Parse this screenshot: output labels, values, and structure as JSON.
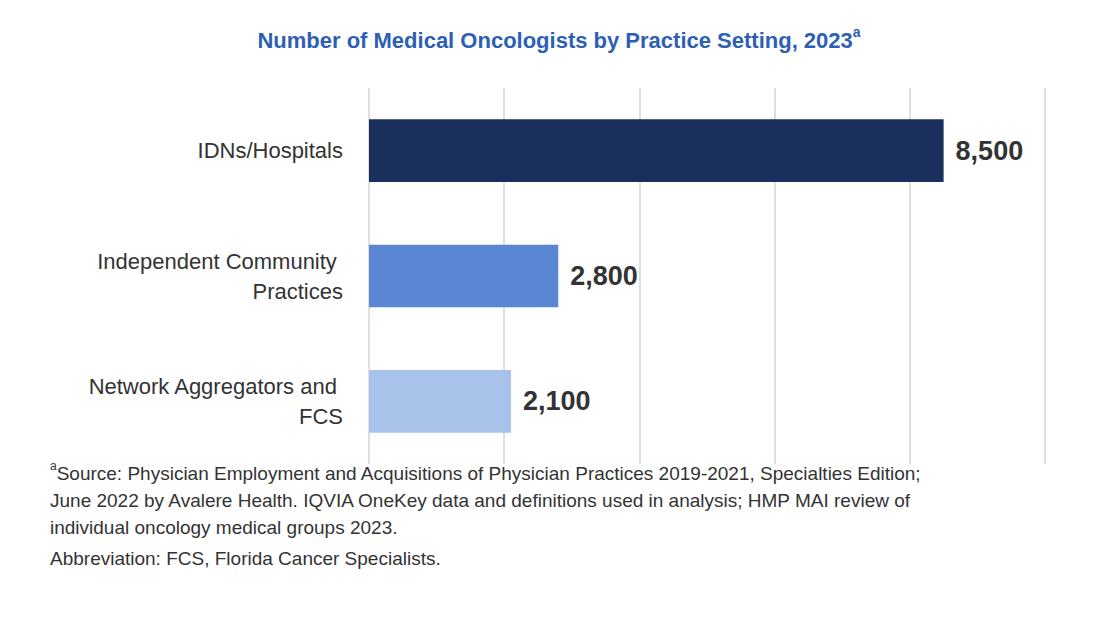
{
  "chart_data": {
    "type": "bar",
    "orientation": "horizontal",
    "title": "Number of Medical Oncologists by Practice Setting, 2023",
    "title_superscript": "a",
    "categories": [
      "IDNs/Hospitals",
      "Independent Community Practices",
      "Network Aggregators and FCS"
    ],
    "values": [
      8500,
      2800,
      2100
    ],
    "value_labels": [
      "8,500",
      "2,800",
      "2,100"
    ],
    "colors": [
      "#1b2f5c",
      "#5b86d3",
      "#a8c2ea"
    ],
    "xlim": [
      0,
      10000
    ],
    "xticks": [
      0,
      2000,
      4000,
      6000,
      8000,
      10000
    ],
    "grid": true,
    "data_labels": true,
    "tick_labels": "y",
    "footnotes": [
      {
        "mark": "a",
        "lines": [
          "Source: Physician Employment and Acquisitions of Physician Practices 2019-2021, Specialties Edition;",
          "June 2022 by Avalere Health. IQVIA OneKey data and definitions used in analysis; HMP MAI review of",
          "individual oncology medical groups 2023."
        ]
      },
      {
        "lines": [
          "Abbreviation: FCS, Florida Cancer Specialists."
        ]
      }
    ]
  }
}
